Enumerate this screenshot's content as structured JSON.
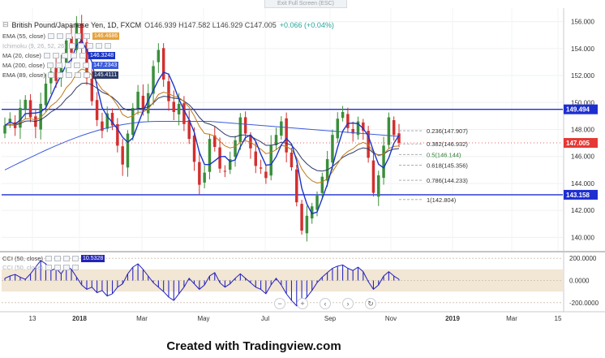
{
  "window": {
    "exit_fullscreen": "Exit Full Screen (ESC)"
  },
  "header": {
    "title": "British Pound/Japanese Yen, 1D, FXCM",
    "ohlc": "O146.939  H147.582  L146.929  C147.005",
    "change": "+0.066 (+0.04%)"
  },
  "legend": [
    {
      "name": "EMA (55, close)",
      "value": "146.4686",
      "color": "#e6a23c"
    },
    {
      "name": "Ichimoku (9, 26, 52, 26)",
      "value": "",
      "color": "#c0c4c9"
    },
    {
      "name": "MA (20, close)",
      "value": "146.3248",
      "color": "#1a35c9"
    },
    {
      "name": "MA (200, close)",
      "value": "147.2343",
      "color": "#3b5bdb"
    },
    {
      "name": "EMA (89, close)",
      "value": "145.4111",
      "color": "#2b3a67"
    }
  ],
  "cci_legend": [
    {
      "name": "CCI (50, close)",
      "value": "10.5328",
      "color": "#2222bb"
    },
    {
      "name": "CCI (50, close)",
      "value": "",
      "color": "#bbbbbb"
    }
  ],
  "icons": {
    "minus": "−",
    "plus": "+",
    "left": "‹",
    "right": "›",
    "reset": "↻",
    "collapse": "⊟"
  },
  "chart_data": {
    "type": "candlestick",
    "title": "British Pound/Japanese Yen, 1D, FXCM",
    "y_ticks": [
      140,
      142,
      144,
      146,
      148,
      150,
      152,
      154,
      156
    ],
    "ylim": [
      139,
      157
    ],
    "x_ticks": [
      "13",
      "2018",
      "Mar",
      "May",
      "Jul",
      "Sep",
      "Nov",
      "2019",
      "Mar",
      "15"
    ],
    "close_series": [
      148.3,
      148.8,
      148.1,
      149.6,
      150.2,
      148.9,
      148.2,
      149.9,
      151.4,
      152.3,
      151.6,
      152.8,
      154.6,
      153.7,
      155.9,
      154.2,
      151.8,
      150.1,
      148.7,
      147.9,
      149.2,
      148.3,
      146.8,
      145.4,
      147.7,
      149.6,
      150.8,
      149.4,
      150.7,
      152.7,
      153.9,
      151.7,
      150.1,
      149.3,
      149.9,
      148.4,
      147.3,
      145.6,
      143.9,
      144.8,
      147.3,
      146.7,
      145.1,
      144.9,
      145.8,
      147.2,
      148.9,
      147.7,
      146.6,
      145.3,
      145.1,
      144.4,
      146.8,
      147.6,
      148.6,
      146.3,
      145.2,
      142.6,
      140.5,
      141.6,
      142.3,
      143.1,
      144.5,
      145.8,
      147.6,
      148.8,
      149.3,
      148.1,
      147.7,
      148.6,
      147.9,
      145.9,
      143.3,
      144.6,
      146.8,
      148.9,
      147.6,
      147.0
    ],
    "horizontal_lines": [
      {
        "value": 149.494,
        "label": "149.494",
        "color": "#1e2fcf"
      },
      {
        "value": 143.158,
        "label": "143.158",
        "color": "#1e2fcf"
      }
    ],
    "price_marker": {
      "value": 147.005,
      "label": "147.005",
      "color": "#e53935"
    },
    "fibonacci": [
      {
        "label": "0.236(147.907)",
        "value": 147.907
      },
      {
        "label": "0.382(146.932)",
        "value": 146.932
      },
      {
        "label": "0.5(146.144)",
        "value": 146.144,
        "color": "#2e7d32"
      },
      {
        "label": "0.618(145.356)",
        "value": 145.356
      },
      {
        "label": "0.786(144.233)",
        "value": 144.233
      },
      {
        "label": "1(142.804)",
        "value": 142.804
      }
    ],
    "cci": {
      "y_ticks": [
        200,
        0,
        -200
      ],
      "ylim": [
        -260,
        260
      ],
      "band": [
        100,
        -100
      ],
      "values": [
        20,
        40,
        55,
        30,
        10,
        60,
        120,
        180,
        150,
        90,
        110,
        60,
        130,
        100,
        30,
        -40,
        -80,
        -60,
        -110,
        -90,
        -140,
        -120,
        -60,
        -30,
        60,
        120,
        150,
        100,
        40,
        -20,
        -60,
        -100,
        -150,
        -180,
        -120,
        -60,
        20,
        -30,
        -80,
        -40,
        40,
        70,
        -20,
        -60,
        -30,
        20,
        60,
        20,
        -20,
        -60,
        -80,
        -120,
        -40,
        20,
        -40,
        -120,
        -180,
        -230,
        -200,
        -150,
        -90,
        -20,
        30,
        70,
        110,
        130,
        140,
        110,
        90,
        120,
        80,
        -10,
        -80,
        -40,
        40,
        80,
        40,
        10
      ]
    }
  },
  "footer": {
    "text": "Created with Tradingview.com"
  }
}
